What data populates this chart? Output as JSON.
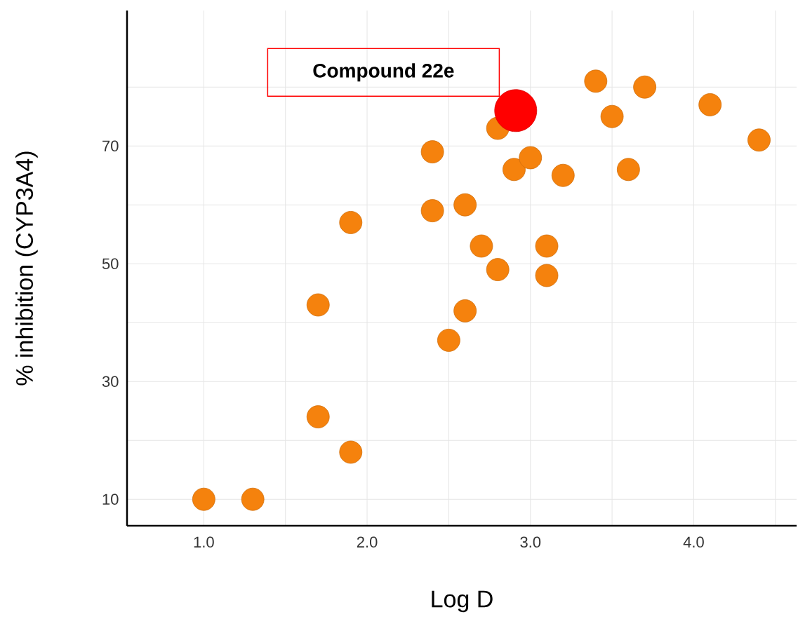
{
  "chart_data": {
    "type": "scatter",
    "xlabel": "Log D",
    "ylabel": "% inhibition (CYP3A4)",
    "xlim": [
      0.53,
      4.63
    ],
    "ylim": [
      5.5,
      93
    ],
    "xticks": [
      {
        "value": 1.0,
        "label": "1.0"
      },
      {
        "value": 1.5,
        "label": null
      },
      {
        "value": 2.0,
        "label": "2.0"
      },
      {
        "value": 2.5,
        "label": null
      },
      {
        "value": 3.0,
        "label": "3.0"
      },
      {
        "value": 3.5,
        "label": null
      },
      {
        "value": 4.0,
        "label": "4.0"
      },
      {
        "value": 4.5,
        "label": null
      }
    ],
    "yticks": [
      10,
      {
        "value": 20,
        "label": null
      },
      30,
      {
        "value": 40,
        "label": null
      },
      50,
      {
        "value": 60,
        "label": null
      },
      70,
      {
        "value": 80,
        "label": null
      }
    ],
    "grid": true,
    "series": [
      {
        "color": "#f5820d",
        "x": [
          1.0,
          1.3,
          1.7,
          1.7,
          1.9,
          1.9,
          2.4,
          2.4,
          2.6,
          2.6,
          2.5,
          2.7,
          2.8,
          2.8,
          2.9,
          3.0,
          3.1,
          3.1,
          3.2,
          3.4,
          3.5,
          3.6,
          3.7,
          4.1,
          4.4
        ],
        "values": [
          10,
          10,
          43,
          24,
          57,
          18,
          69,
          59,
          60,
          42,
          37,
          53,
          49,
          73,
          66,
          68,
          53,
          48,
          65,
          81,
          75,
          66,
          80,
          77,
          71
        ]
      },
      {
        "color": "#ff0000",
        "x": [
          2.91
        ],
        "values": [
          76
        ]
      }
    ],
    "annotations": [
      "**Compound 22e**"
    ]
  }
}
